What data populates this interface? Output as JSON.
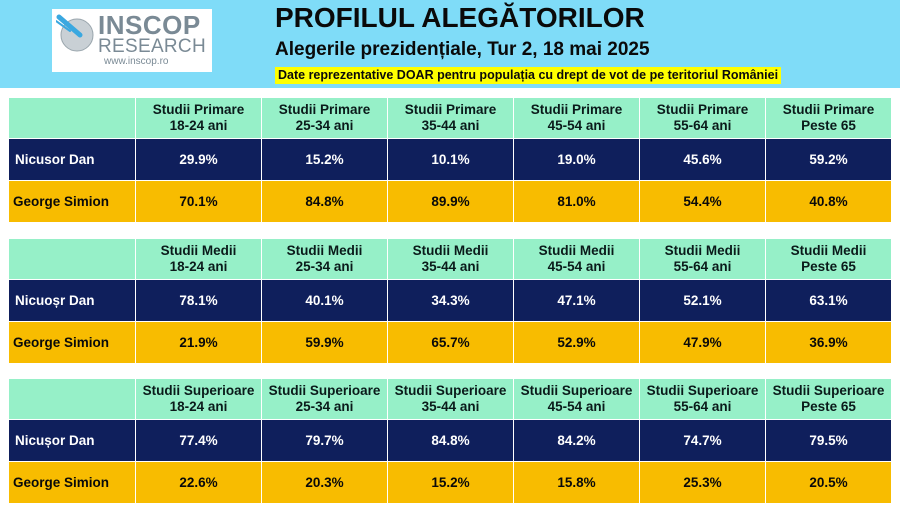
{
  "logo": {
    "brand": "INSCOP",
    "sub": "RESEARCH",
    "url": "www.inscop.ro"
  },
  "header": {
    "title": "PROFILUL ALEGĂTORILOR",
    "subtitle": "Alegerile prezidențiale, Tur 2, 18 mai 2025",
    "note": "Date reprezentative DOAR pentru populația cu drept de vot de pe teritoriul României"
  },
  "colors": {
    "header_bg": "#7fdcf8",
    "column_header_bg": "#96f0c8",
    "nicusor_row_bg": "#0f1f5c",
    "simion_row_bg": "#f8bc00",
    "note_highlight": "#ffff00"
  },
  "tables": [
    {
      "columns": [
        {
          "line1": "Studii Primare",
          "line2": "18-24 ani"
        },
        {
          "line1": "Studii Primare",
          "line2": "25-34 ani"
        },
        {
          "line1": "Studii Primare",
          "line2": "35-44 ani"
        },
        {
          "line1": "Studii Primare",
          "line2": "45-54 ani"
        },
        {
          "line1": "Studii Primare",
          "line2": "55-64 ani"
        },
        {
          "line1": "Studii Primare",
          "line2": "Peste 65"
        }
      ],
      "rows": [
        {
          "name": "Nicusor Dan",
          "values": [
            "29.9%",
            "15.2%",
            "10.1%",
            "19.0%",
            "45.6%",
            "59.2%"
          ]
        },
        {
          "name": "George Simion",
          "values": [
            "70.1%",
            "84.8%",
            "89.9%",
            "81.0%",
            "54.4%",
            "40.8%"
          ]
        }
      ]
    },
    {
      "columns": [
        {
          "line1": "Studii Medii",
          "line2": "18-24 ani"
        },
        {
          "line1": "Studii Medii",
          "line2": "25-34 ani"
        },
        {
          "line1": "Studii Medii",
          "line2": "35-44 ani"
        },
        {
          "line1": "Studii Medii",
          "line2": "45-54 ani"
        },
        {
          "line1": "Studii Medii",
          "line2": "55-64 ani"
        },
        {
          "line1": "Studii Medii",
          "line2": "Peste 65"
        }
      ],
      "rows": [
        {
          "name": "Nicuoșr Dan",
          "values": [
            "78.1%",
            "40.1%",
            "34.3%",
            "47.1%",
            "52.1%",
            "63.1%"
          ]
        },
        {
          "name": "George Simion",
          "values": [
            "21.9%",
            "59.9%",
            "65.7%",
            "52.9%",
            "47.9%",
            "36.9%"
          ]
        }
      ]
    },
    {
      "columns": [
        {
          "line1": "Studii Superioare",
          "line2": "18-24 ani"
        },
        {
          "line1": "Studii Superioare",
          "line2": "25-34 ani"
        },
        {
          "line1": "Studii Superioare",
          "line2": "35-44 ani"
        },
        {
          "line1": "Studii Superioare",
          "line2": "45-54 ani"
        },
        {
          "line1": "Studii Superioare",
          "line2": "55-64 ani"
        },
        {
          "line1": "Studii Superioare",
          "line2": "Peste 65"
        }
      ],
      "rows": [
        {
          "name": "Nicușor Dan",
          "values": [
            "77.4%",
            "79.7%",
            "84.8%",
            "84.2%",
            "74.7%",
            "79.5%"
          ]
        },
        {
          "name": "George Simion",
          "values": [
            "22.6%",
            "20.3%",
            "15.2%",
            "15.8%",
            "25.3%",
            "20.5%"
          ]
        }
      ]
    }
  ]
}
